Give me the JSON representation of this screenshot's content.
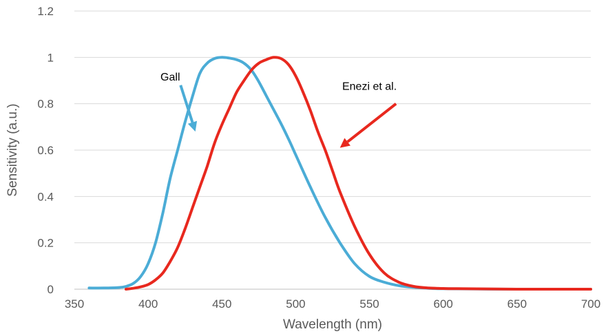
{
  "chart_data": {
    "type": "line",
    "xlabel": "Wavelength (nm)",
    "ylabel": "Sensitivity (a.u.)",
    "xlim": [
      350,
      700
    ],
    "ylim": [
      0,
      1.2
    ],
    "x_ticks": [
      "350",
      "400",
      "450",
      "500",
      "550",
      "600",
      "650",
      "700"
    ],
    "y_ticks": [
      "0",
      "0.2",
      "0.4",
      "0.6",
      "0.8",
      "1",
      "1.2"
    ],
    "grid": "horizontal",
    "series": [
      {
        "name": "Gall",
        "color": "#4bacd6",
        "x": [
          360,
          370,
          380,
          385,
          390,
          395,
          400,
          405,
          410,
          415,
          420,
          425,
          430,
          435,
          440,
          445,
          450,
          455,
          460,
          465,
          470,
          475,
          480,
          485,
          490,
          495,
          500,
          510,
          520,
          530,
          540,
          550,
          560,
          570,
          580,
          590,
          600,
          650,
          700
        ],
        "y": [
          0.005,
          0.005,
          0.007,
          0.012,
          0.025,
          0.055,
          0.11,
          0.2,
          0.33,
          0.48,
          0.6,
          0.72,
          0.83,
          0.93,
          0.975,
          0.995,
          1.0,
          0.997,
          0.99,
          0.975,
          0.945,
          0.895,
          0.835,
          0.775,
          0.715,
          0.65,
          0.58,
          0.44,
          0.31,
          0.2,
          0.11,
          0.055,
          0.03,
          0.015,
          0.008,
          0.004,
          0.002,
          0.0,
          0.0
        ]
      },
      {
        "name": "Enezi et al.",
        "color": "#e8281e",
        "x": [
          385,
          390,
          395,
          400,
          405,
          410,
          415,
          420,
          425,
          430,
          435,
          440,
          445,
          450,
          455,
          460,
          465,
          470,
          475,
          480,
          485,
          490,
          495,
          500,
          505,
          510,
          515,
          520,
          525,
          530,
          540,
          550,
          560,
          570,
          580,
          590,
          600,
          610,
          650,
          700
        ],
        "y": [
          0.0,
          0.004,
          0.01,
          0.02,
          0.04,
          0.07,
          0.12,
          0.18,
          0.26,
          0.35,
          0.44,
          0.53,
          0.63,
          0.71,
          0.78,
          0.85,
          0.9,
          0.945,
          0.975,
          0.99,
          1.0,
          0.995,
          0.97,
          0.92,
          0.85,
          0.77,
          0.68,
          0.6,
          0.51,
          0.42,
          0.27,
          0.15,
          0.07,
          0.03,
          0.012,
          0.005,
          0.003,
          0.002,
          0.0,
          0.0
        ]
      }
    ],
    "annotations": [
      {
        "text": "Gall",
        "series": "Gall",
        "color": "#4bacd6",
        "label_at": [
          415,
          0.9
        ],
        "arrow_from": [
          422,
          0.88
        ],
        "arrow_to": [
          432,
          0.68
        ]
      },
      {
        "text": "Enezi et al.",
        "series": "Enezi et al.",
        "color": "#e8281e",
        "label_at": [
          550,
          0.86
        ],
        "arrow_from": [
          568,
          0.8
        ],
        "arrow_to": [
          530,
          0.61
        ]
      }
    ]
  }
}
